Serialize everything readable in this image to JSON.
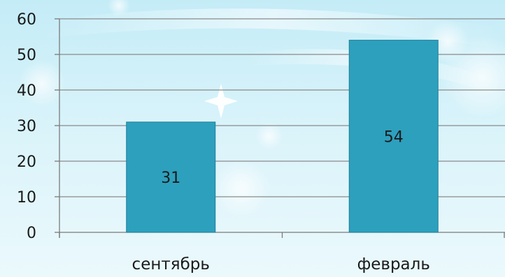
{
  "chart_data": {
    "type": "bar",
    "categories": [
      "сентябрь",
      "февраль"
    ],
    "values": [
      31,
      54
    ],
    "data_labels": [
      "31",
      "54"
    ],
    "yticks": [
      "0",
      "10",
      "20",
      "30",
      "40",
      "50",
      "60"
    ],
    "ylim": [
      0,
      60
    ],
    "grid": true,
    "legend": "none",
    "title": "",
    "xlabel": "",
    "ylabel": ""
  },
  "colors": {
    "bar": "#2da0bd",
    "bar_edge": "#1e7f99",
    "grid": "#8a8a8a",
    "axis": "#7a7a7a"
  }
}
